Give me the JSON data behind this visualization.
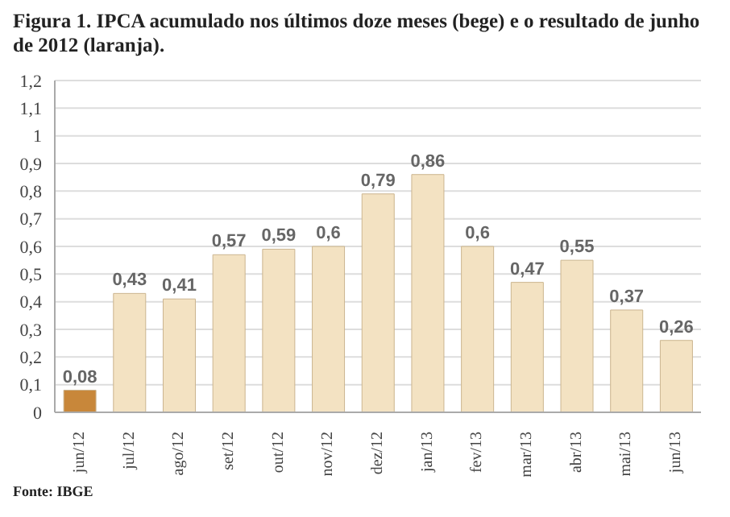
{
  "chart_data": {
    "type": "bar",
    "title": "Figura 1. IPCA acumulado nos últimos doze meses (bege) e o resultado de junho de 2012 (laranja).",
    "categories": [
      "jun/12",
      "jul/12",
      "ago/12",
      "set/12",
      "out/12",
      "nov/12",
      "dez/12",
      "jan/13",
      "fev/13",
      "mar/13",
      "abr/13",
      "mai/13",
      "jun/13"
    ],
    "values": [
      0.08,
      0.43,
      0.41,
      0.57,
      0.59,
      0.6,
      0.79,
      0.86,
      0.6,
      0.47,
      0.55,
      0.37,
      0.26
    ],
    "value_labels": [
      "0,08",
      "0,43",
      "0,41",
      "0,57",
      "0,59",
      "0,6",
      "0,79",
      "0,86",
      "0,6",
      "0,47",
      "0,55",
      "0,37",
      "0,26"
    ],
    "colors": [
      "#c8873a",
      "#f3e2c2",
      "#f3e2c2",
      "#f3e2c2",
      "#f3e2c2",
      "#f3e2c2",
      "#f3e2c2",
      "#f3e2c2",
      "#f3e2c2",
      "#f3e2c2",
      "#f3e2c2",
      "#f3e2c2",
      "#f3e2c2"
    ],
    "ylim": [
      0,
      1.2
    ],
    "yticks": [
      {
        "value": 0,
        "label": "0"
      },
      {
        "value": 0.1,
        "label": "0,1"
      },
      {
        "value": 0.2,
        "label": "0,2"
      },
      {
        "value": 0.3,
        "label": "0,3"
      },
      {
        "value": 0.4,
        "label": "0,4"
      },
      {
        "value": 0.5,
        "label": "0,5"
      },
      {
        "value": 0.6,
        "label": "0,6"
      },
      {
        "value": 0.7,
        "label": "0,7"
      },
      {
        "value": 0.8,
        "label": "0,8"
      },
      {
        "value": 0.9,
        "label": "0,9"
      },
      {
        "value": 1,
        "label": "1"
      },
      {
        "value": 1.1,
        "label": "1,1"
      },
      {
        "value": 1.2,
        "label": "1,2"
      }
    ],
    "grid": "y",
    "annotations": [
      "Fonte: IBGE"
    ]
  }
}
